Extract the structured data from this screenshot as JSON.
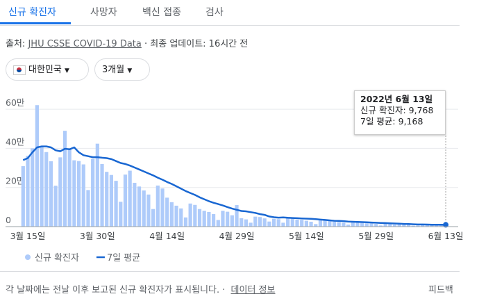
{
  "tabs": [
    "신규 확진자",
    "사망자",
    "백신 접종",
    "검사"
  ],
  "source": {
    "label": "출처:",
    "link": "JHU CSSE COVID-19 Data",
    "updated": "· 최종 업데이트: 16시간 전"
  },
  "filters": [
    "대한민국",
    "3개월"
  ],
  "tooltip": {
    "date": "2022년 6월 13일",
    "lines": [
      "신규 확진자: 9,768",
      "7일 평균: 9,168"
    ]
  },
  "footer": {
    "note": "각 날짜에는 전날 이후 보고된 신규 확진자가 표시됩니다. ·",
    "link": "데이터 정보",
    "feedback": "피드백"
  },
  "chart_data": {
    "type": "bar",
    "grid": true,
    "legend": "bottom-left",
    "categories": [
      null,
      "3월 15일",
      null,
      null,
      null,
      null,
      null,
      null,
      null,
      null,
      null,
      null,
      null,
      null,
      null,
      null,
      "3월 30일",
      null,
      null,
      null,
      null,
      null,
      null,
      null,
      null,
      null,
      null,
      null,
      null,
      null,
      null,
      "4월 14일",
      null,
      null,
      null,
      null,
      null,
      null,
      null,
      null,
      null,
      null,
      null,
      null,
      null,
      null,
      "4월 29일",
      null,
      null,
      null,
      null,
      null,
      null,
      null,
      null,
      null,
      null,
      null,
      null,
      null,
      null,
      "5월 14일",
      null,
      null,
      null,
      null,
      null,
      null,
      null,
      null,
      null,
      null,
      null,
      null,
      null,
      null,
      "5월 29일",
      null,
      null,
      null,
      null,
      null,
      null,
      null,
      null,
      null,
      null,
      null,
      null,
      null,
      null,
      "6월 13일"
    ],
    "ylim": [
      0,
      700000
    ],
    "yticks": [
      0,
      {
        "value": 200000,
        "label": "20만"
      },
      {
        "value": 400000,
        "label": "40만"
      },
      {
        "value": 600000,
        "label": "60만"
      }
    ],
    "series": [
      {
        "name": "신규 확진자",
        "type": "bar",
        "color": "#aecbfa",
        "values": [
          309000,
          362000,
          400000,
          621000,
          407000,
          381000,
          334000,
          209000,
          354000,
          490000,
          395000,
          339000,
          335000,
          318000,
          187000,
          347000,
          424000,
          320000,
          280000,
          264000,
          234000,
          127000,
          266000,
          286000,
          224000,
          205000,
          185000,
          164000,
          90000,
          210000,
          195000,
          148000,
          125000,
          107000,
          93000,
          47000,
          118000,
          111000,
          90000,
          81000,
          75000,
          64000,
          34000,
          81000,
          76000,
          58000,
          110000,
          43000,
          37000,
          20000,
          51000,
          49000,
          42000,
          26000,
          40000,
          38000,
          20000,
          49000,
          43000,
          36000,
          35000,
          30000,
          25000,
          13000,
          35000,
          32000,
          29000,
          25000,
          23000,
          20000,
          10000,
          23000,
          24000,
          19000,
          17000,
          17000,
          14000,
          6000,
          16000,
          13000,
          10000,
          12000,
          11000,
          9000,
          5000,
          6000,
          13000,
          12000,
          10000,
          9000,
          7000,
          9768
        ]
      },
      {
        "name": "7일 평균",
        "type": "line",
        "color": "#1967d2",
        "values": [
          340000,
          350000,
          380000,
          405000,
          410000,
          410000,
          405000,
          390000,
          385000,
          398000,
          395000,
          405000,
          380000,
          365000,
          360000,
          355000,
          355000,
          352000,
          350000,
          345000,
          335000,
          325000,
          320000,
          312000,
          302000,
          292000,
          282000,
          272000,
          262000,
          250000,
          240000,
          228000,
          218000,
          206000,
          194000,
          182000,
          172000,
          162000,
          150000,
          140000,
          130000,
          122000,
          115000,
          108000,
          100000,
          92000,
          86000,
          80000,
          78000,
          74000,
          70000,
          64000,
          60000,
          52000,
          48000,
          46000,
          47000,
          45000,
          44000,
          43000,
          42000,
          41000,
          40000,
          38000,
          36000,
          34000,
          32000,
          30000,
          29000,
          28000,
          26000,
          25000,
          24000,
          23000,
          22000,
          21000,
          20000,
          19000,
          18000,
          17000,
          16000,
          15000,
          14000,
          13000,
          12000,
          11000,
          11000,
          10500,
          10000,
          9800,
          9500,
          9168
        ]
      }
    ]
  }
}
